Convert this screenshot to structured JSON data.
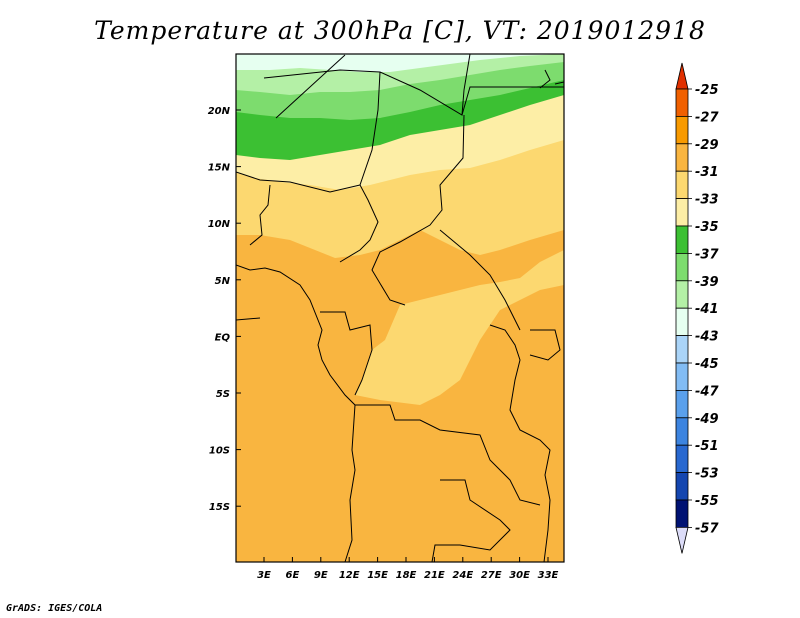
{
  "title": "Temperature at 300hPa [C], VT: 2019012918",
  "footer": "GrADS: IGES/COLA",
  "map": {
    "lon_labels": [
      "3E",
      "6E",
      "9E",
      "12E",
      "15E",
      "18E",
      "21E",
      "24E",
      "27E",
      "30E",
      "33E"
    ],
    "lat_labels": [
      "20N",
      "15N",
      "10N",
      "5N",
      "EQ",
      "5S",
      "10S",
      "15S"
    ],
    "field_level_c": {
      "north_edge": -43,
      "green_band_17N": -37,
      "sahel_10N": -33,
      "central_5N": -31,
      "southern_bulk": -29
    }
  },
  "legend": {
    "unit": "C",
    "levels": [
      "-25",
      "-27",
      "-29",
      "-31",
      "-33",
      "-35",
      "-37",
      "-39",
      "-41",
      "-43",
      "-45",
      "-47",
      "-49",
      "-51",
      "-53",
      "-55",
      "-57"
    ],
    "colors": [
      "#f06000",
      "#f89a00",
      "#f9b540",
      "#fcd870",
      "#fdeea6",
      "#3cc033",
      "#7ddc6e",
      "#b4f0a6",
      "#e6fff0",
      "#aad4f8",
      "#82bcf4",
      "#5aa0ec",
      "#3c84e0",
      "#2868d0",
      "#1446b0",
      "#001273"
    ],
    "top_color": "#e03000",
    "bottom_color": "#dcdcf8"
  }
}
